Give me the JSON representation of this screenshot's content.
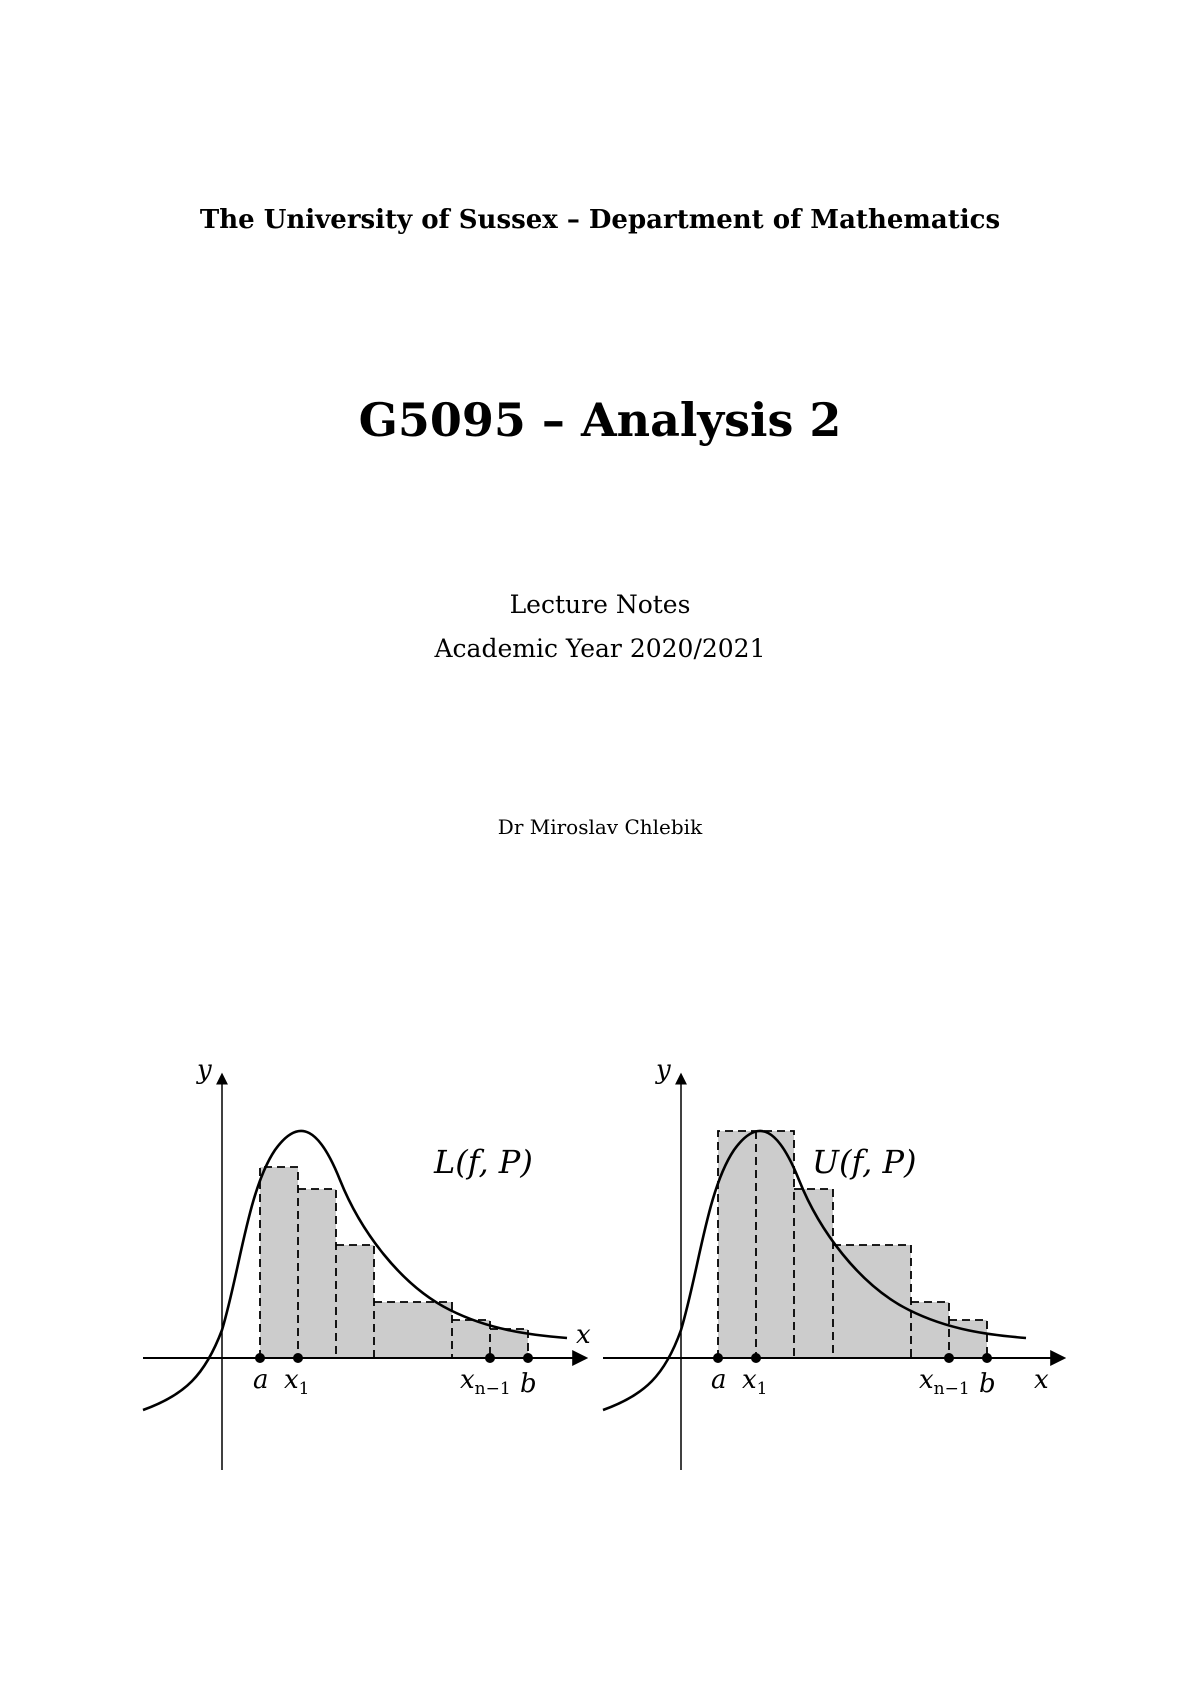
{
  "header": {
    "institution": "The University of Sussex – Department of Mathematics"
  },
  "course": {
    "title": "G5095 – Analysis 2"
  },
  "subtitle": {
    "notes": "Lecture Notes",
    "academic_year": "Academic Year 2020/2021"
  },
  "author": {
    "name": "Dr Miroslav Chlebik"
  },
  "figures": {
    "left": {
      "label_main": "L(f, P)",
      "axis_x": "x",
      "axis_y": "y",
      "points": {
        "a": "a",
        "x1": "x",
        "x1_sub": "1",
        "xn1": "x",
        "xn1_sub": "n−1",
        "b": "b"
      }
    },
    "right": {
      "label_main": "U(f, P)",
      "axis_x": "x",
      "axis_y": "y",
      "points": {
        "a": "a",
        "x1": "x",
        "x1_sub": "1",
        "xn1": "x",
        "xn1_sub": "n−1",
        "b": "b"
      }
    },
    "colors": {
      "rect_fill": "#cccccc",
      "line": "#000000"
    }
  }
}
